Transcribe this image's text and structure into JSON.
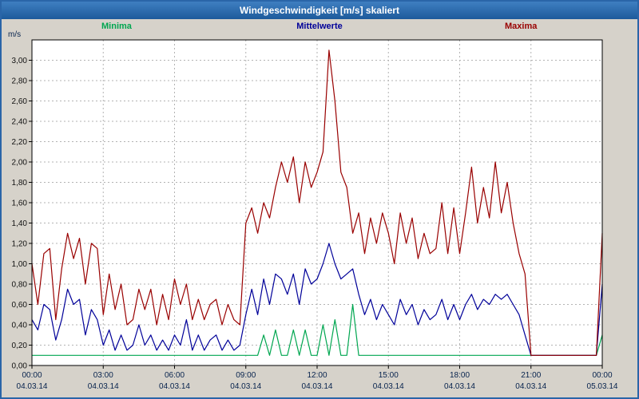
{
  "header": {
    "title": "Windgeschwindigkeit [m/s] skaliert"
  },
  "chart_data": {
    "type": "line",
    "title": "Windgeschwindigkeit [m/s] skaliert",
    "xlabel": "",
    "ylabel": "m/s",
    "ylim": [
      0,
      3.2
    ],
    "ytick_step": 0.2,
    "grid": true,
    "legend_position": "top",
    "x_range_hours": [
      0,
      24
    ],
    "sample_interval_minutes": 15,
    "ytick_labels": [
      "0,00",
      "0,20",
      "0,40",
      "0,60",
      "0,80",
      "1,00",
      "1,20",
      "1,40",
      "1,60",
      "1,80",
      "2,00",
      "2,20",
      "2,40",
      "2,60",
      "2,80",
      "3,00"
    ],
    "xtick_labels": [
      "00:00",
      "03:00",
      "06:00",
      "09:00",
      "12:00",
      "15:00",
      "18:00",
      "21:00",
      "00:00"
    ],
    "xtick_dates": [
      "04.03.14",
      "04.03.14",
      "04.03.14",
      "04.03.14",
      "04.03.14",
      "04.03.14",
      "04.03.14",
      "04.03.14",
      "05.03.14"
    ],
    "series": [
      {
        "name": "Minima",
        "color": "#00a650",
        "values": [
          0.1,
          0.1,
          0.1,
          0.1,
          0.1,
          0.1,
          0.1,
          0.1,
          0.1,
          0.1,
          0.1,
          0.1,
          0.1,
          0.1,
          0.1,
          0.1,
          0.1,
          0.1,
          0.1,
          0.1,
          0.1,
          0.1,
          0.1,
          0.1,
          0.1,
          0.1,
          0.1,
          0.1,
          0.1,
          0.1,
          0.1,
          0.1,
          0.1,
          0.1,
          0.1,
          0.1,
          0.1,
          0.1,
          0.1,
          0.3,
          0.1,
          0.35,
          0.1,
          0.1,
          0.35,
          0.1,
          0.35,
          0.1,
          0.1,
          0.4,
          0.1,
          0.45,
          0.1,
          0.1,
          0.6,
          0.1,
          0.1,
          0.1,
          0.1,
          0.1,
          0.1,
          0.1,
          0.1,
          0.1,
          0.1,
          0.1,
          0.1,
          0.1,
          0.1,
          0.1,
          0.1,
          0.1,
          0.1,
          0.1,
          0.1,
          0.1,
          0.1,
          0.1,
          0.1,
          0.1,
          0.1,
          0.1,
          0.1,
          0.1,
          0.1,
          0.1,
          0.1,
          0.1,
          0.1,
          0.1,
          0.1,
          0.1,
          0.1,
          0.1,
          0.1,
          0.1,
          0.3
        ]
      },
      {
        "name": "Mittelwerte",
        "color": "#000099",
        "values": [
          0.45,
          0.35,
          0.6,
          0.55,
          0.25,
          0.45,
          0.75,
          0.6,
          0.65,
          0.3,
          0.55,
          0.45,
          0.2,
          0.35,
          0.15,
          0.3,
          0.15,
          0.2,
          0.4,
          0.2,
          0.3,
          0.15,
          0.25,
          0.15,
          0.3,
          0.2,
          0.45,
          0.15,
          0.3,
          0.15,
          0.25,
          0.3,
          0.15,
          0.25,
          0.15,
          0.2,
          0.5,
          0.75,
          0.5,
          0.85,
          0.6,
          0.9,
          0.85,
          0.7,
          0.9,
          0.6,
          0.95,
          0.8,
          0.85,
          1.0,
          1.2,
          1.0,
          0.85,
          0.9,
          0.95,
          0.7,
          0.5,
          0.65,
          0.45,
          0.6,
          0.5,
          0.4,
          0.65,
          0.5,
          0.6,
          0.4,
          0.55,
          0.45,
          0.5,
          0.65,
          0.45,
          0.6,
          0.45,
          0.6,
          0.7,
          0.55,
          0.65,
          0.6,
          0.7,
          0.65,
          0.7,
          0.6,
          0.5,
          0.3,
          0.1,
          0.1,
          0.1,
          0.1,
          0.1,
          0.1,
          0.1,
          0.1,
          0.1,
          0.1,
          0.1,
          0.1,
          0.8
        ]
      },
      {
        "name": "Maxima",
        "color": "#990000",
        "values": [
          1.0,
          0.6,
          1.1,
          1.15,
          0.45,
          0.95,
          1.3,
          1.05,
          1.25,
          0.8,
          1.2,
          1.15,
          0.5,
          0.9,
          0.55,
          0.8,
          0.4,
          0.45,
          0.75,
          0.55,
          0.75,
          0.4,
          0.7,
          0.45,
          0.85,
          0.6,
          0.8,
          0.45,
          0.65,
          0.45,
          0.6,
          0.65,
          0.4,
          0.6,
          0.45,
          0.4,
          1.4,
          1.55,
          1.3,
          1.6,
          1.45,
          1.75,
          2.0,
          1.8,
          2.05,
          1.6,
          2.0,
          1.75,
          1.9,
          2.1,
          3.1,
          2.6,
          1.9,
          1.75,
          1.3,
          1.5,
          1.1,
          1.45,
          1.2,
          1.5,
          1.3,
          1.0,
          1.5,
          1.2,
          1.45,
          1.05,
          1.3,
          1.1,
          1.15,
          1.6,
          1.1,
          1.55,
          1.1,
          1.5,
          1.95,
          1.4,
          1.75,
          1.45,
          2.0,
          1.5,
          1.8,
          1.4,
          1.1,
          0.9,
          0.1,
          0.1,
          0.1,
          0.1,
          0.1,
          0.1,
          0.1,
          0.1,
          0.1,
          0.1,
          0.1,
          0.1,
          1.3
        ]
      }
    ]
  }
}
